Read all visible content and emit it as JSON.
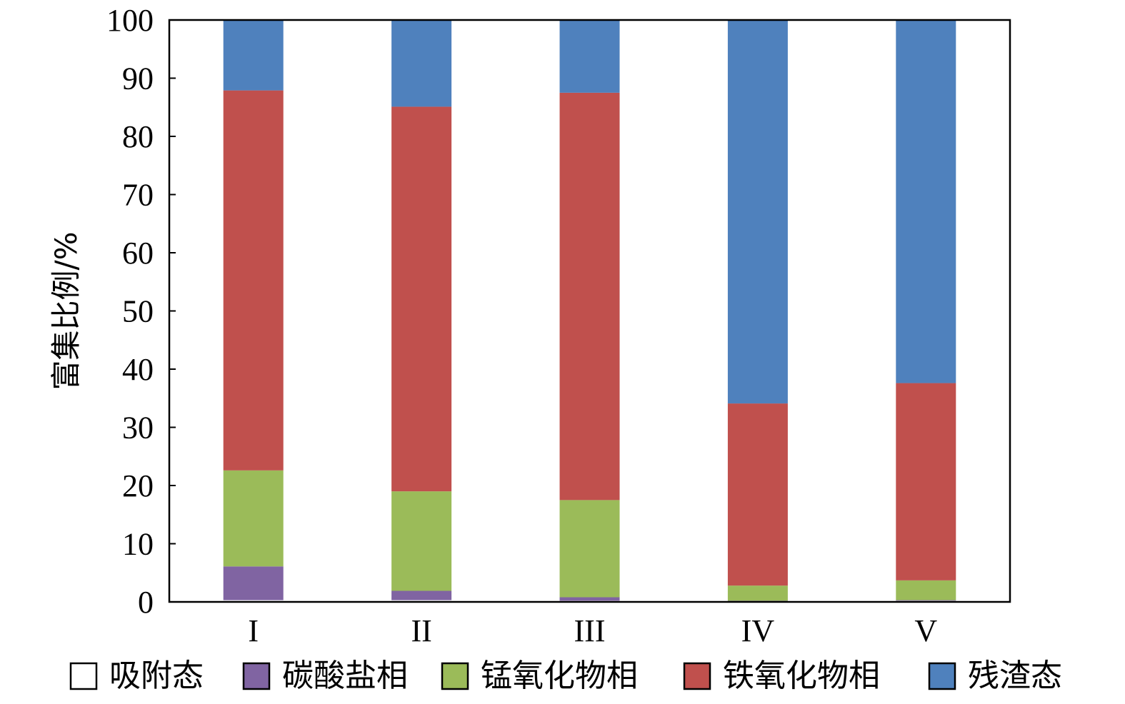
{
  "chart_data": {
    "type": "bar",
    "stacked": true,
    "title": "",
    "xlabel": "",
    "ylabel": "富集比例/%",
    "ylim": [
      0,
      100
    ],
    "yticks": [
      0,
      10,
      20,
      30,
      40,
      50,
      60,
      70,
      80,
      90,
      100
    ],
    "categories": [
      "I",
      "II",
      "III",
      "IV",
      "V"
    ],
    "series": [
      {
        "name": "吸附态",
        "color": "#ffffff",
        "values": [
          0.3,
          0.3,
          0.2,
          0.1,
          0.2
        ]
      },
      {
        "name": "碳酸盐相",
        "color": "#8064a2",
        "values": [
          5.8,
          1.6,
          0.6,
          0.1,
          0.1
        ]
      },
      {
        "name": "锰氧化物相",
        "color": "#9bbb59",
        "values": [
          16.5,
          17.1,
          16.7,
          2.6,
          3.4
        ]
      },
      {
        "name": "铁氧化物相",
        "color": "#c0504d",
        "values": [
          65.3,
          66.1,
          70.0,
          31.3,
          33.9
        ]
      },
      {
        "name": "残渣态",
        "color": "#4f81bd",
        "values": [
          12.1,
          14.9,
          12.5,
          65.9,
          62.4
        ]
      }
    ],
    "legend_position": "bottom",
    "grid": false
  }
}
